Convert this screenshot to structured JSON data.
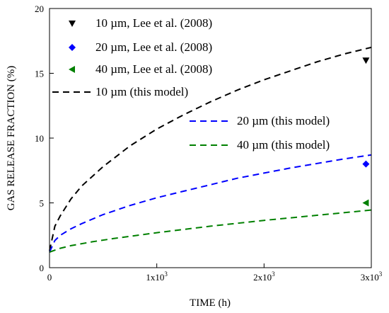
{
  "chart_data": {
    "type": "line",
    "title": "",
    "xlabel": "TIME (h)",
    "ylabel": "GAS RELEASE FRACTION (%)",
    "xlim": [
      0,
      3000
    ],
    "ylim": [
      0,
      20
    ],
    "x_ticks": [
      {
        "value": 0,
        "base": "0",
        "exp": ""
      },
      {
        "value": 1000,
        "base": "1x10",
        "exp": "3"
      },
      {
        "value": 2000,
        "base": "2x10",
        "exp": "3"
      },
      {
        "value": 3000,
        "base": "3x10",
        "exp": "3"
      }
    ],
    "y_ticks": [
      0,
      5,
      10,
      15,
      20
    ],
    "grid": false,
    "legend_placement": "top-left (model 20/40 entries at center-right)",
    "series": [
      {
        "name": "10 µm, Lee et al. (2008)",
        "kind": "marker",
        "marker": "triangle-down",
        "color": "#000000",
        "x": [
          2950
        ],
        "y": [
          16.0
        ]
      },
      {
        "name": "20 µm, Lee et al. (2008)",
        "kind": "marker",
        "marker": "diamond",
        "color": "#0000ff",
        "x": [
          2950
        ],
        "y": [
          8.0
        ]
      },
      {
        "name": "40 µm, Lee et al. (2008)",
        "kind": "marker",
        "marker": "triangle-left",
        "color": "#008000",
        "x": [
          2950
        ],
        "y": [
          5.0
        ]
      },
      {
        "name": "10 µm (this model)",
        "kind": "dashed-line",
        "color": "#000000",
        "x": [
          0,
          50,
          100,
          200,
          300,
          500,
          750,
          1000,
          1250,
          1500,
          1750,
          2000,
          2250,
          2500,
          2750,
          3000
        ],
        "y": [
          1.3,
          3.2,
          4.0,
          5.3,
          6.3,
          7.8,
          9.4,
          10.7,
          11.8,
          12.8,
          13.7,
          14.5,
          15.2,
          15.9,
          16.5,
          17.0
        ]
      },
      {
        "name": "20 µm (this model)",
        "kind": "dashed-line",
        "color": "#0000ff",
        "x": [
          0,
          50,
          100,
          200,
          300,
          500,
          750,
          1000,
          1250,
          1500,
          1750,
          2000,
          2250,
          2500,
          2750,
          3000
        ],
        "y": [
          1.2,
          2.1,
          2.5,
          3.0,
          3.4,
          4.1,
          4.8,
          5.4,
          5.9,
          6.4,
          6.9,
          7.3,
          7.7,
          8.05,
          8.4,
          8.7
        ]
      },
      {
        "name": "40 µm (this model)",
        "kind": "dashed-line",
        "color": "#008000",
        "x": [
          0,
          100,
          200,
          400,
          600,
          1000,
          1500,
          2000,
          2500,
          3000
        ],
        "y": [
          1.2,
          1.5,
          1.7,
          2.0,
          2.25,
          2.7,
          3.2,
          3.65,
          4.05,
          4.45
        ]
      }
    ]
  }
}
